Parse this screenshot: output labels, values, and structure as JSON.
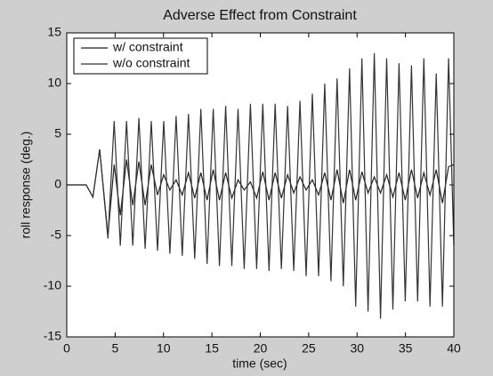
{
  "chart_data": {
    "type": "line",
    "title": "Adverse Effect from Constraint",
    "xlabel": "time (sec)",
    "ylabel": "roll response (deg.)",
    "x": [
      0,
      2,
      2.7,
      3.4,
      4.26,
      4.9,
      5.54,
      6.18,
      6.82,
      7.46,
      8.1,
      8.74,
      9.38,
      10.02,
      10.66,
      11.3,
      11.94,
      12.58,
      13.22,
      13.86,
      14.5,
      15.14,
      15.78,
      16.42,
      17.06,
      17.7,
      18.34,
      18.98,
      19.62,
      20.26,
      20.9,
      21.54,
      22.18,
      22.82,
      23.46,
      24.1,
      24.74,
      25.38,
      26.02,
      26.66,
      27.3,
      27.94,
      28.58,
      29.22,
      29.86,
      30.5,
      31.14,
      31.78,
      32.42,
      33.06,
      33.7,
      34.34,
      34.98,
      35.62,
      36.26,
      36.9,
      37.54,
      38.18,
      38.82,
      39.46,
      40
    ],
    "series": [
      {
        "name": "w/ constraint",
        "color": "#222222",
        "values": [
          0,
          0,
          -1.2,
          3.5,
          -5,
          2,
          -3,
          2.5,
          -2,
          2.3,
          -2,
          2,
          -1,
          1,
          -0.5,
          0.5,
          -1,
          1.2,
          -1.3,
          1.2,
          -1.5,
          1.5,
          -1.5,
          1.2,
          -1.3,
          0.5,
          -0.5,
          0.3,
          -1.3,
          1.3,
          -1.5,
          1.2,
          -1.3,
          1,
          -0.8,
          0.8,
          -0.5,
          0.5,
          -1,
          1.2,
          -1.5,
          1.5,
          -1.8,
          1.5,
          -1.5,
          1.3,
          -0.8,
          0.8,
          -0.8,
          1,
          -1.2,
          1.2,
          -1.5,
          1.5,
          -1.3,
          1.2,
          -1,
          1.5,
          -1.8,
          1.8,
          2
        ]
      },
      {
        "name": "w/o constraint",
        "color": "#333333",
        "values": [
          0,
          0,
          -1.2,
          3.5,
          -5.3,
          6.3,
          -6,
          6.3,
          -6,
          6.6,
          -6.3,
          6.3,
          -6.5,
          6.3,
          -6.8,
          6.8,
          -7,
          7,
          -7.3,
          7.5,
          -7.8,
          7.5,
          -8,
          7.8,
          -8,
          7.5,
          -8.3,
          8,
          -8.3,
          8,
          -8.5,
          8,
          -8.3,
          7.8,
          -8.5,
          8.3,
          -9,
          9,
          -9,
          10,
          -9.5,
          10.5,
          -10,
          11.5,
          -12,
          12.5,
          -12.5,
          13,
          -13.2,
          12.5,
          -12.3,
          12,
          -11.5,
          11.8,
          -11.5,
          12.5,
          -12,
          11,
          -12,
          12.5,
          -6
        ]
      }
    ],
    "xlim": [
      0,
      40
    ],
    "xticks": [
      0,
      5,
      10,
      15,
      20,
      25,
      30,
      35,
      40
    ],
    "ylim": [
      -15,
      15
    ],
    "yticks": [
      -15,
      -10,
      -5,
      0,
      5,
      10,
      15
    ],
    "grid": false,
    "legend": "upper left"
  }
}
